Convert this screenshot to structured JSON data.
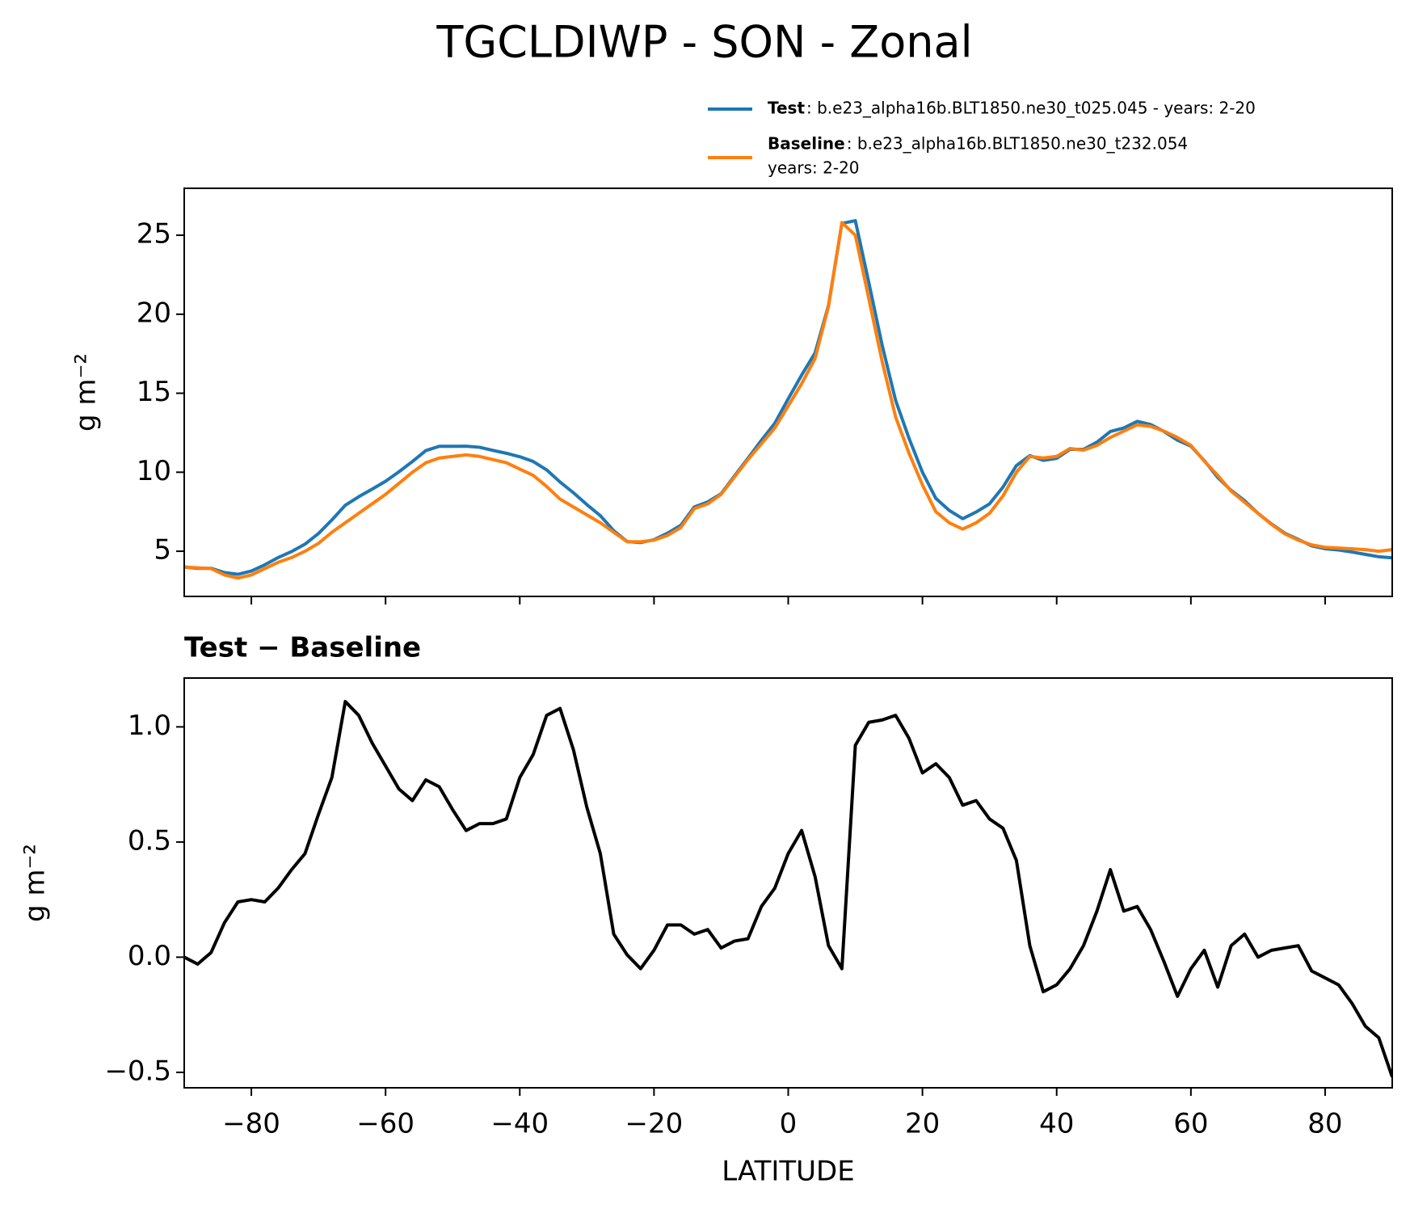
{
  "chart_data": [
    {
      "type": "line",
      "title": "TGCLDIWP - SON - Zonal",
      "ylabel": "g m⁻²",
      "legend": "upper right",
      "grid": false,
      "x": [
        -90,
        -88,
        -86,
        -84,
        -82,
        -80,
        -78,
        -76,
        -74,
        -72,
        -70,
        -68,
        -66,
        -64,
        -62,
        -60,
        -58,
        -56,
        -54,
        -52,
        -50,
        -48,
        -46,
        -44,
        -42,
        -40,
        -38,
        -36,
        -34,
        -32,
        -30,
        -28,
        -26,
        -24,
        -22,
        -20,
        -18,
        -16,
        -14,
        -12,
        -10,
        -8,
        -6,
        -4,
        -2,
        0,
        2,
        4,
        6,
        8,
        10,
        12,
        14,
        16,
        18,
        20,
        22,
        24,
        26,
        28,
        30,
        32,
        34,
        36,
        38,
        40,
        42,
        44,
        46,
        48,
        50,
        52,
        54,
        56,
        58,
        60,
        62,
        64,
        66,
        68,
        70,
        72,
        74,
        76,
        78,
        80,
        82,
        84,
        86,
        88,
        90
      ],
      "series": [
        {
          "name": "Test",
          "description": [
            ": b.e23_alpha16b.BLT1850.ne30_t025.045 - years: 2-20"
          ],
          "color": "#1f77b4",
          "values": [
            4.0,
            3.92,
            3.92,
            3.65,
            3.54,
            3.75,
            4.14,
            4.6,
            4.98,
            5.45,
            6.12,
            6.98,
            7.91,
            8.45,
            8.93,
            9.43,
            10.03,
            10.68,
            11.37,
            11.64,
            11.64,
            11.65,
            11.58,
            11.38,
            11.2,
            10.98,
            10.68,
            10.15,
            9.38,
            8.7,
            7.95,
            7.25,
            6.3,
            5.61,
            5.55,
            5.73,
            6.14,
            6.64,
            7.8,
            8.12,
            8.64,
            9.77,
            10.88,
            12.02,
            13.1,
            14.65,
            16.15,
            17.55,
            20.55,
            25.75,
            25.92,
            22.02,
            18.03,
            14.55,
            12.15,
            10.0,
            8.34,
            7.58,
            7.06,
            7.48,
            8.0,
            9.06,
            10.42,
            11.05,
            10.75,
            10.88,
            11.45,
            11.45,
            11.9,
            12.58,
            12.8,
            13.22,
            13.02,
            12.58,
            12.03,
            11.65,
            10.73,
            9.67,
            8.85,
            8.2,
            7.4,
            6.73,
            6.14,
            5.75,
            5.34,
            5.16,
            5.08,
            4.95,
            4.8,
            4.65,
            4.58
          ]
        },
        {
          "name": "Baseline",
          "description": [
            ": b.e23_alpha16b.BLT1850.ne30_t232.054",
            "years: 2-20"
          ],
          "color": "#ff7f0e",
          "values": [
            4.0,
            3.95,
            3.9,
            3.5,
            3.3,
            3.5,
            3.9,
            4.3,
            4.6,
            5.0,
            5.5,
            6.2,
            6.8,
            7.4,
            8.0,
            8.6,
            9.3,
            10.0,
            10.6,
            10.9,
            11.0,
            11.1,
            11.0,
            10.8,
            10.6,
            10.2,
            9.8,
            9.1,
            8.3,
            7.8,
            7.3,
            6.8,
            6.2,
            5.6,
            5.6,
            5.7,
            6.0,
            6.5,
            7.7,
            8.0,
            8.6,
            9.7,
            10.8,
            11.8,
            12.8,
            14.2,
            15.6,
            17.2,
            20.5,
            25.8,
            25.0,
            21.0,
            17.0,
            13.5,
            11.2,
            9.2,
            7.5,
            6.8,
            6.4,
            6.8,
            7.4,
            8.5,
            10.0,
            11.0,
            10.9,
            11.0,
            11.5,
            11.4,
            11.7,
            12.2,
            12.6,
            13.0,
            12.9,
            12.6,
            12.2,
            11.7,
            10.7,
            9.8,
            8.8,
            8.1,
            7.4,
            6.7,
            6.1,
            5.7,
            5.4,
            5.25,
            5.2,
            5.15,
            5.1,
            5.0,
            5.1
          ]
        }
      ],
      "xlim": [
        -90,
        90
      ],
      "xticks": [
        -80,
        -60,
        -40,
        -20,
        0,
        20,
        40,
        60,
        80
      ],
      "ylim": [
        2.14,
        27.97
      ],
      "yticks": [
        5,
        10,
        15,
        20,
        25
      ]
    },
    {
      "type": "line",
      "title": "Test − Baseline",
      "ylabel": "g m⁻²",
      "xlabel": "LATITUDE",
      "grid": false,
      "x": [
        -90,
        -88,
        -86,
        -84,
        -82,
        -80,
        -78,
        -76,
        -74,
        -72,
        -70,
        -68,
        -66,
        -64,
        -62,
        -60,
        -58,
        -56,
        -54,
        -52,
        -50,
        -48,
        -46,
        -44,
        -42,
        -40,
        -38,
        -36,
        -34,
        -32,
        -30,
        -28,
        -26,
        -24,
        -22,
        -20,
        -18,
        -16,
        -14,
        -12,
        -10,
        -8,
        -6,
        -4,
        -2,
        0,
        2,
        4,
        6,
        8,
        10,
        12,
        14,
        16,
        18,
        20,
        22,
        24,
        26,
        28,
        30,
        32,
        34,
        36,
        38,
        40,
        42,
        44,
        46,
        48,
        50,
        52,
        54,
        56,
        58,
        60,
        62,
        64,
        66,
        68,
        70,
        72,
        74,
        76,
        78,
        80,
        82,
        84,
        86,
        88,
        90
      ],
      "series": [
        {
          "color": "#000000",
          "values": [
            0.0,
            -0.03,
            0.02,
            0.15,
            0.24,
            0.25,
            0.24,
            0.3,
            0.38,
            0.45,
            0.62,
            0.78,
            1.11,
            1.05,
            0.93,
            0.83,
            0.73,
            0.68,
            0.77,
            0.74,
            0.64,
            0.55,
            0.58,
            0.58,
            0.6,
            0.78,
            0.88,
            1.05,
            1.08,
            0.9,
            0.65,
            0.45,
            0.1,
            0.01,
            -0.05,
            0.03,
            0.14,
            0.14,
            0.1,
            0.12,
            0.04,
            0.07,
            0.08,
            0.22,
            0.3,
            0.45,
            0.55,
            0.35,
            0.05,
            -0.05,
            0.92,
            1.02,
            1.03,
            1.05,
            0.95,
            0.8,
            0.84,
            0.78,
            0.66,
            0.68,
            0.6,
            0.56,
            0.42,
            0.05,
            -0.15,
            -0.12,
            -0.05,
            0.05,
            0.2,
            0.38,
            0.2,
            0.22,
            0.12,
            -0.02,
            -0.17,
            -0.05,
            0.03,
            -0.13,
            0.05,
            0.1,
            0.0,
            0.03,
            0.04,
            0.05,
            -0.06,
            -0.09,
            -0.12,
            -0.2,
            -0.3,
            -0.35,
            -0.52
          ]
        }
      ],
      "xlim": [
        -90,
        90
      ],
      "xticks": [
        {
          "value": -80,
          "label": "−80"
        },
        {
          "value": -60,
          "label": "−60"
        },
        {
          "value": -40,
          "label": "−40"
        },
        {
          "value": -20,
          "label": "−20"
        },
        0,
        20,
        40,
        60,
        80
      ],
      "ylim": [
        -0.567,
        1.212
      ],
      "yticks": [
        {
          "value": -0.5,
          "label": "−0.5"
        },
        {
          "value": 0,
          "label": "0.0"
        },
        0.5,
        {
          "value": 1,
          "label": "1.0"
        }
      ]
    }
  ]
}
